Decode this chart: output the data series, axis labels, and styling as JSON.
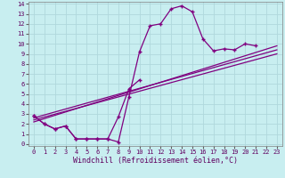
{
  "xlabel": "Windchill (Refroidissement éolien,°C)",
  "bg_color": "#c8eef0",
  "grid_color": "#b0d8dc",
  "line_color": "#800080",
  "xlim": [
    -0.5,
    23.5
  ],
  "ylim": [
    -0.2,
    14.2
  ],
  "xticks": [
    0,
    1,
    2,
    3,
    4,
    5,
    6,
    7,
    8,
    9,
    10,
    11,
    12,
    13,
    14,
    15,
    16,
    17,
    18,
    19,
    20,
    21,
    22,
    23
  ],
  "yticks": [
    0,
    1,
    2,
    3,
    4,
    5,
    6,
    7,
    8,
    9,
    10,
    11,
    12,
    13,
    14
  ],
  "curve_x": [
    0,
    1,
    2,
    3,
    4,
    5,
    6,
    7,
    8,
    9,
    10,
    11,
    12,
    13,
    14,
    15,
    16,
    17,
    18,
    19,
    20,
    21
  ],
  "curve_y": [
    2.8,
    2.0,
    1.5,
    1.8,
    0.5,
    0.5,
    0.5,
    0.5,
    0.2,
    4.7,
    9.2,
    11.8,
    12.0,
    13.5,
    13.8,
    13.2,
    10.5,
    9.3,
    9.5,
    9.4,
    10.0,
    9.8
  ],
  "curve2_x": [
    0,
    1,
    2,
    3,
    4,
    5,
    6,
    7,
    8,
    9,
    10
  ],
  "curve2_y": [
    2.8,
    2.0,
    1.5,
    1.8,
    0.5,
    0.5,
    0.5,
    0.5,
    2.7,
    5.5,
    6.4
  ],
  "line1_x": [
    0,
    23
  ],
  "line1_y": [
    2.6,
    9.4
  ],
  "line2_x": [
    0,
    23
  ],
  "line2_y": [
    2.4,
    9.0
  ],
  "line3_x": [
    0,
    23
  ],
  "line3_y": [
    2.2,
    9.8
  ],
  "tick_fontsize": 5,
  "label_fontsize": 6
}
